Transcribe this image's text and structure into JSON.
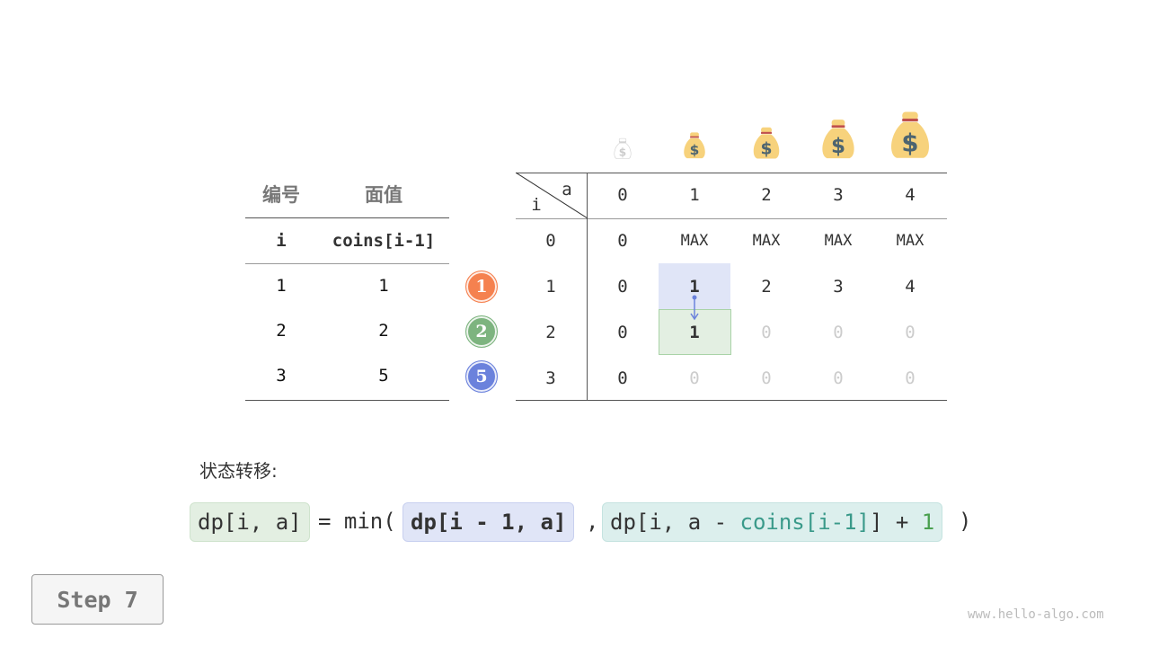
{
  "coins_table": {
    "headers": [
      "编号",
      "面值"
    ],
    "subheaders": [
      "i",
      "coins[i-1]"
    ],
    "rows": [
      [
        "1",
        "1"
      ],
      [
        "2",
        "2"
      ],
      [
        "3",
        "5"
      ]
    ]
  },
  "coin_badges": [
    {
      "label": "1",
      "color": "#f5814f"
    },
    {
      "label": "2",
      "color": "#7db47f"
    },
    {
      "label": "5",
      "color": "#6b82dc"
    }
  ],
  "dp_table": {
    "corner_col": "a",
    "corner_row": "i",
    "col_headers": [
      "0",
      "1",
      "2",
      "3",
      "4"
    ],
    "row_labels": [
      "0",
      "1",
      "2",
      "3"
    ],
    "cells": [
      [
        "0",
        "MAX",
        "MAX",
        "MAX",
        "MAX"
      ],
      [
        "0",
        "1",
        "2",
        "3",
        "4"
      ],
      [
        "0",
        "1",
        "0",
        "0",
        "0"
      ],
      [
        "0",
        "0",
        "0",
        "0",
        "0"
      ]
    ],
    "filled": [
      [
        true,
        true,
        true,
        true,
        true
      ],
      [
        true,
        true,
        true,
        true,
        true
      ],
      [
        true,
        true,
        false,
        false,
        false
      ],
      [
        true,
        false,
        false,
        false,
        false
      ]
    ],
    "highlight_source": [
      1,
      1
    ],
    "highlight_target": [
      2,
      1
    ]
  },
  "formula": {
    "label": "状态转移:",
    "lhs": "dp[i, a]",
    "eq": "= min(",
    "arg1": "dp[i - 1, a]",
    "comma": ",",
    "arg2_a": "dp[i, a - ",
    "arg2_b": "coins[i-1]",
    "arg2_c": "] + ",
    "arg2_d": "1",
    "close": ")"
  },
  "step": "Step 7",
  "watermark": "www.hello-algo.com"
}
